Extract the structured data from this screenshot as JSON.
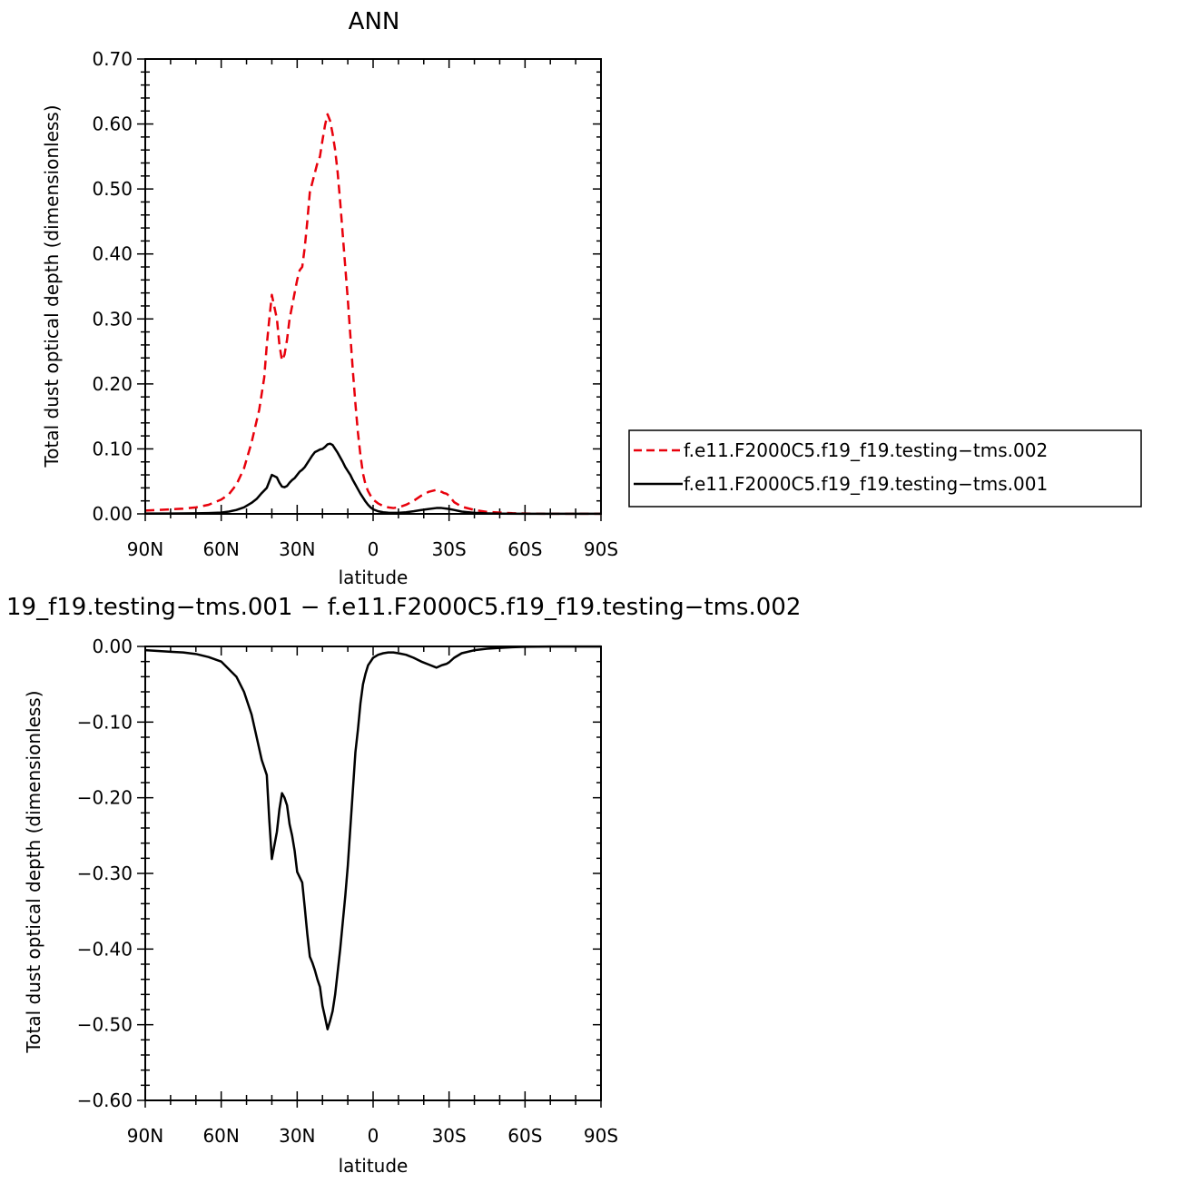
{
  "chart_data": [
    {
      "type": "line",
      "title": "ANN",
      "xlabel": "latitude",
      "ylabel": "Total dust optical depth (dimensionless)",
      "xlim": [
        90,
        -90
      ],
      "ylim": [
        0.0,
        0.7
      ],
      "x_ticks": [
        {
          "value": 90,
          "label": "90N"
        },
        {
          "value": 60,
          "label": "60N"
        },
        {
          "value": 30,
          "label": "30N"
        },
        {
          "value": 0,
          "label": "0"
        },
        {
          "value": -30,
          "label": "30S"
        },
        {
          "value": -60,
          "label": "60S"
        },
        {
          "value": -90,
          "label": "90S"
        }
      ],
      "y_ticks": [
        {
          "value": 0.0,
          "label": "0.00"
        },
        {
          "value": 0.1,
          "label": "0.10"
        },
        {
          "value": 0.2,
          "label": "0.20"
        },
        {
          "value": 0.3,
          "label": "0.30"
        },
        {
          "value": 0.4,
          "label": "0.40"
        },
        {
          "value": 0.5,
          "label": "0.50"
        },
        {
          "value": 0.6,
          "label": "0.60"
        },
        {
          "value": 0.7,
          "label": "0.70"
        }
      ],
      "legend_position": "right",
      "series": [
        {
          "name": "f.e11.F2000C5.f19_f19.testing−tms.002",
          "color": "#e8000b",
          "style": "dashed",
          "x": [
            90,
            85,
            80,
            75,
            70,
            65,
            60,
            57,
            54,
            51,
            48,
            45,
            43,
            42,
            41,
            40,
            38,
            37,
            36,
            35,
            34,
            33,
            32,
            31,
            30,
            29,
            28,
            27,
            26,
            25,
            24,
            23,
            22,
            21,
            20,
            19,
            18,
            17,
            16,
            15,
            14,
            13,
            12,
            11,
            10,
            9,
            8,
            7,
            6,
            5,
            4,
            3,
            2,
            1,
            0,
            -2,
            -4,
            -6,
            -8,
            -10,
            -13,
            -16,
            -19,
            -22,
            -25,
            -27,
            -28,
            -29,
            -30,
            -32,
            -35,
            -40,
            -45,
            -50,
            -55,
            -60,
            -70,
            -80,
            -90
          ],
          "y": [
            0.005,
            0.006,
            0.007,
            0.008,
            0.01,
            0.014,
            0.022,
            0.03,
            0.045,
            0.07,
            0.11,
            0.16,
            0.21,
            0.26,
            0.3,
            0.337,
            0.3,
            0.26,
            0.236,
            0.245,
            0.268,
            0.3,
            0.32,
            0.34,
            0.36,
            0.375,
            0.38,
            0.41,
            0.45,
            0.495,
            0.51,
            0.525,
            0.54,
            0.55,
            0.575,
            0.598,
            0.615,
            0.605,
            0.585,
            0.56,
            0.525,
            0.48,
            0.43,
            0.38,
            0.33,
            0.275,
            0.22,
            0.17,
            0.125,
            0.09,
            0.062,
            0.045,
            0.035,
            0.028,
            0.022,
            0.016,
            0.012,
            0.01,
            0.009,
            0.01,
            0.014,
            0.02,
            0.028,
            0.034,
            0.037,
            0.034,
            0.032,
            0.031,
            0.028,
            0.018,
            0.011,
            0.006,
            0.003,
            0.002,
            0.001,
            0.0005,
            0.0002,
            0.0001,
            0.0001
          ]
        },
        {
          "name": "f.e11.F2000C5.f19_f19.testing−tms.001",
          "color": "#000000",
          "style": "solid",
          "x": [
            90,
            80,
            70,
            65,
            60,
            57,
            54,
            51,
            48,
            46,
            44,
            42,
            41,
            40,
            38,
            37,
            36,
            35,
            34,
            33,
            32,
            31,
            30,
            29,
            28,
            27,
            26,
            25,
            24,
            23,
            22,
            21,
            20,
            19,
            18,
            17,
            16,
            15,
            14,
            13,
            12,
            11,
            10,
            9,
            8,
            7,
            6,
            5,
            4,
            3,
            2,
            1,
            0,
            -2,
            -4,
            -6,
            -8,
            -10,
            -13,
            -16,
            -19,
            -22,
            -25,
            -27,
            -29,
            -30,
            -32,
            -35,
            -40,
            -45,
            -50,
            -60,
            -70,
            -80,
            -90
          ],
          "y": [
            0.0005,
            0.0006,
            0.0008,
            0.0012,
            0.002,
            0.0035,
            0.006,
            0.01,
            0.017,
            0.023,
            0.032,
            0.04,
            0.05,
            0.06,
            0.056,
            0.048,
            0.042,
            0.041,
            0.043,
            0.048,
            0.052,
            0.055,
            0.06,
            0.065,
            0.068,
            0.072,
            0.078,
            0.084,
            0.09,
            0.095,
            0.097,
            0.099,
            0.1,
            0.103,
            0.107,
            0.108,
            0.106,
            0.1,
            0.094,
            0.087,
            0.08,
            0.072,
            0.066,
            0.06,
            0.052,
            0.045,
            0.038,
            0.031,
            0.025,
            0.019,
            0.014,
            0.01,
            0.007,
            0.004,
            0.0025,
            0.0018,
            0.0015,
            0.0015,
            0.0025,
            0.004,
            0.006,
            0.0075,
            0.009,
            0.009,
            0.008,
            0.0075,
            0.006,
            0.0035,
            0.0015,
            0.0007,
            0.0003,
            0.0001,
            0.0001,
            0.0001,
            0.0001
          ]
        }
      ]
    },
    {
      "type": "line",
      "title": "19_f19.testing−tms.001 − f.e11.F2000C5.f19_f19.testing−tms.002",
      "xlabel": "latitude",
      "ylabel": "Total dust optical depth (dimensionless)",
      "xlim": [
        90,
        -90
      ],
      "ylim": [
        -0.6,
        0.0
      ],
      "x_ticks": [
        {
          "value": 90,
          "label": "90N"
        },
        {
          "value": 60,
          "label": "60N"
        },
        {
          "value": 30,
          "label": "30N"
        },
        {
          "value": 0,
          "label": "0"
        },
        {
          "value": -30,
          "label": "30S"
        },
        {
          "value": -60,
          "label": "60S"
        },
        {
          "value": -90,
          "label": "90S"
        }
      ],
      "y_ticks": [
        {
          "value": 0.0,
          "label": "0.00"
        },
        {
          "value": -0.1,
          "label": "−0.10"
        },
        {
          "value": -0.2,
          "label": "−0.20"
        },
        {
          "value": -0.3,
          "label": "−0.30"
        },
        {
          "value": -0.4,
          "label": "−0.40"
        },
        {
          "value": -0.5,
          "label": "−0.50"
        },
        {
          "value": -0.6,
          "label": "−0.60"
        }
      ],
      "series": [
        {
          "color": "#000000",
          "style": "solid",
          "x": [
            90,
            85,
            80,
            75,
            70,
            65,
            60,
            57,
            54,
            51,
            48,
            46,
            44,
            42,
            41,
            40,
            38,
            37,
            36,
            35,
            34,
            33,
            32,
            31,
            30,
            29,
            28,
            27,
            26,
            25,
            24,
            23,
            22,
            21,
            20,
            19,
            18,
            17,
            16,
            15,
            14,
            13,
            12,
            11,
            10,
            9,
            8,
            7,
            6,
            5,
            4,
            3,
            2,
            1,
            0,
            -2,
            -4,
            -6,
            -8,
            -10,
            -13,
            -16,
            -19,
            -22,
            -25,
            -27,
            -28,
            -29,
            -30,
            -32,
            -35,
            -40,
            -45,
            -50,
            -55,
            -60,
            -70,
            -80,
            -90
          ],
          "y": [
            -0.005,
            -0.006,
            -0.007,
            -0.008,
            -0.01,
            -0.014,
            -0.02,
            -0.03,
            -0.04,
            -0.06,
            -0.09,
            -0.12,
            -0.15,
            -0.17,
            -0.23,
            -0.281,
            -0.245,
            -0.215,
            -0.194,
            -0.2,
            -0.21,
            -0.235,
            -0.25,
            -0.27,
            -0.298,
            -0.305,
            -0.312,
            -0.345,
            -0.38,
            -0.41,
            -0.418,
            -0.428,
            -0.44,
            -0.45,
            -0.475,
            -0.49,
            -0.506,
            -0.495,
            -0.482,
            -0.46,
            -0.43,
            -0.4,
            -0.365,
            -0.33,
            -0.29,
            -0.24,
            -0.19,
            -0.14,
            -0.11,
            -0.075,
            -0.05,
            -0.036,
            -0.025,
            -0.02,
            -0.015,
            -0.011,
            -0.009,
            -0.008,
            -0.008,
            -0.009,
            -0.011,
            -0.015,
            -0.02,
            -0.024,
            -0.028,
            -0.025,
            -0.024,
            -0.023,
            -0.021,
            -0.015,
            -0.009,
            -0.005,
            -0.003,
            -0.002,
            -0.001,
            -0.0005,
            -0.0002,
            -0.0001,
            -0.0001
          ]
        }
      ]
    }
  ]
}
